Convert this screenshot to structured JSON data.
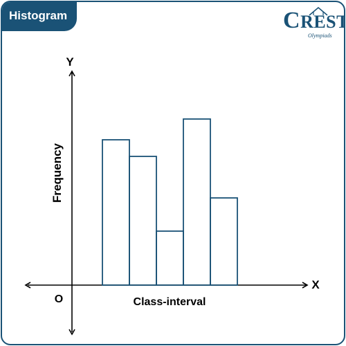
{
  "header": {
    "title": "Histogram"
  },
  "logo": {
    "initial": "C",
    "word": "REST",
    "subtitle": "Olympiads",
    "color": "#1a5276"
  },
  "colors": {
    "brand": "#1a5276",
    "bar_stroke": "#1a5276",
    "axis": "#000000"
  },
  "chart_data": {
    "type": "bar",
    "xlabel": "Class-interval",
    "ylabel": "Frequency",
    "x_axis_letter": "X",
    "y_axis_letter": "Y",
    "origin_label": "O",
    "values": [
      7,
      6.2,
      2.6,
      8,
      4.2
    ],
    "ylim": [
      0,
      10
    ],
    "bar_gap": 0,
    "filled": false
  }
}
